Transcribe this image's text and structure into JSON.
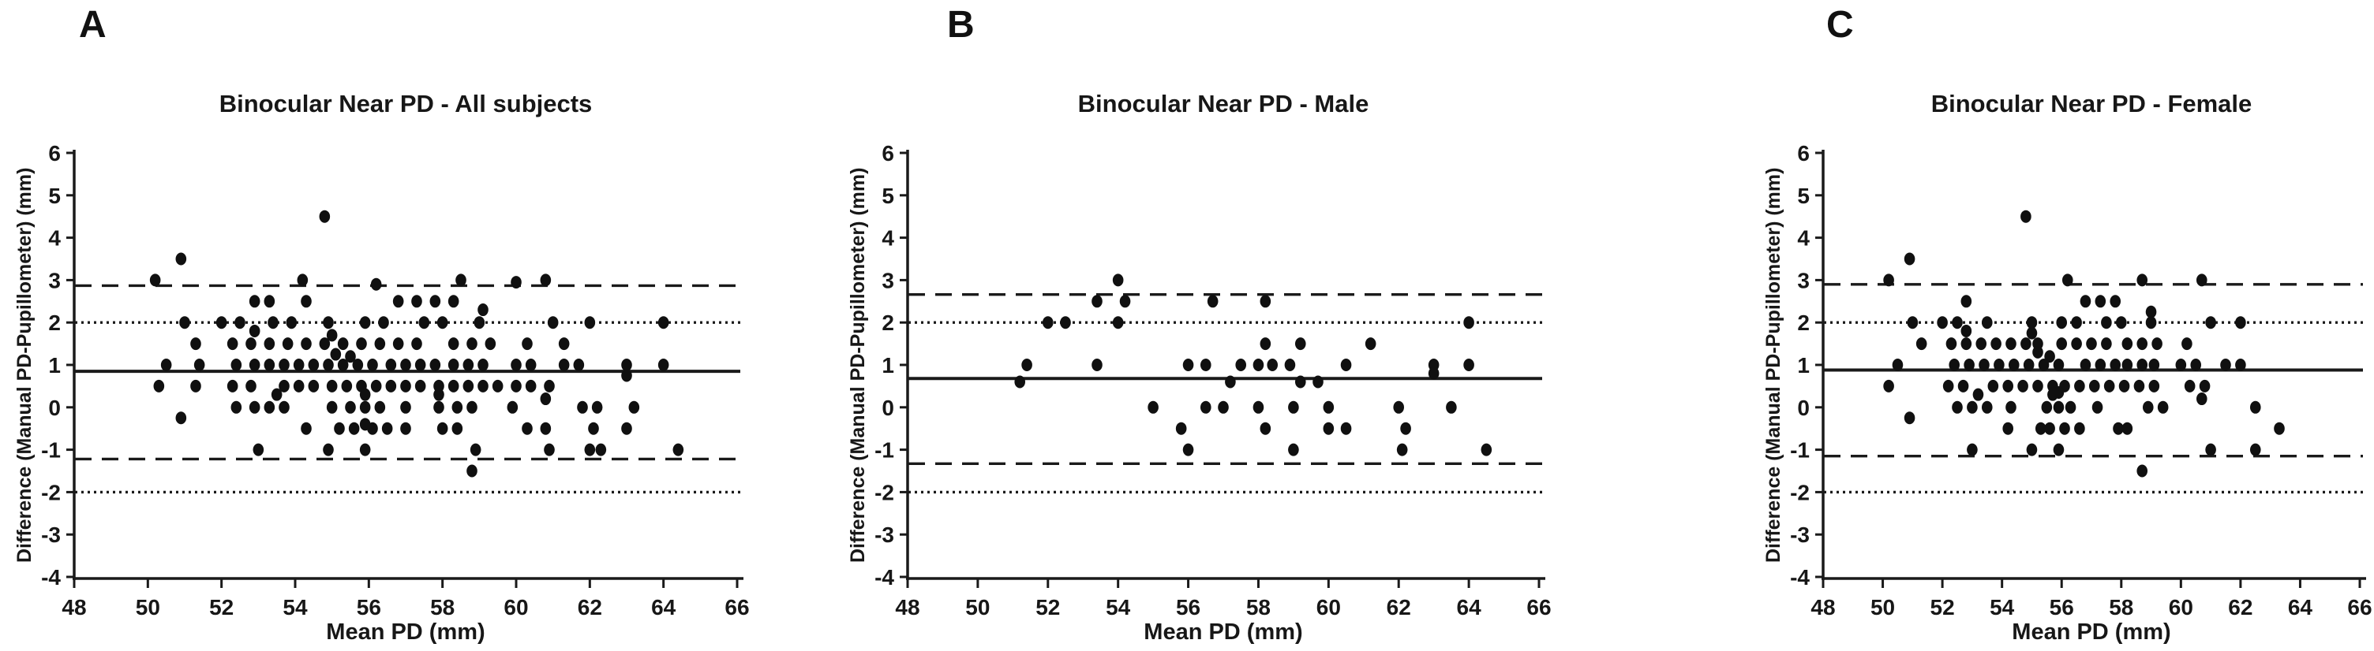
{
  "figure": {
    "kind": "bland-altman-scatter-figure",
    "background": "#ffffff",
    "colors": {
      "point": "#101010",
      "axis": "#1a1a1a",
      "reference_line": "#1a1a1a",
      "text": "#171717"
    }
  },
  "chart_data": [
    {
      "type": "scatter",
      "panel_label": "A",
      "title": "Binocular Near PD - All subjects",
      "xlabel": "Mean PD (mm)",
      "ylabel": "Difference (Manual PD-Pupillometer) (mm)",
      "xlim": [
        48,
        66
      ],
      "ylim": [
        -4,
        6
      ],
      "xticks": [
        48,
        50,
        52,
        54,
        56,
        58,
        60,
        62,
        64,
        66
      ],
      "yticks": [
        6,
        5,
        4,
        3,
        2,
        1,
        0,
        -1,
        -2,
        -3,
        -4
      ],
      "grid": false,
      "legend": null,
      "reference_lines": [
        {
          "y": 0.85,
          "style": "solid",
          "label": "mean-difference"
        },
        {
          "y": 2.87,
          "style": "dashed",
          "label": "upper-limit-of-agreement"
        },
        {
          "y": -1.22,
          "style": "dashed",
          "label": "lower-limit-of-agreement"
        },
        {
          "y": 2.0,
          "style": "dotted",
          "label": "upper-clinical-limit"
        },
        {
          "y": -2.0,
          "style": "dotted",
          "label": "lower-clinical-limit"
        }
      ],
      "points": [
        [
          54.8,
          4.5
        ],
        [
          50.9,
          3.5
        ],
        [
          50.2,
          3.0
        ],
        [
          54.2,
          3.0
        ],
        [
          56.2,
          2.9
        ],
        [
          58.5,
          3.0
        ],
        [
          60.0,
          2.95
        ],
        [
          60.8,
          3.0
        ],
        [
          52.9,
          2.5
        ],
        [
          53.3,
          2.5
        ],
        [
          54.3,
          2.5
        ],
        [
          56.8,
          2.5
        ],
        [
          57.3,
          2.5
        ],
        [
          57.8,
          2.5
        ],
        [
          58.3,
          2.5
        ],
        [
          59.1,
          2.3
        ],
        [
          51.0,
          2.0
        ],
        [
          52.0,
          2.0
        ],
        [
          52.5,
          2.0
        ],
        [
          53.4,
          2.0
        ],
        [
          53.9,
          2.0
        ],
        [
          54.9,
          2.0
        ],
        [
          55.9,
          2.0
        ],
        [
          56.4,
          2.0
        ],
        [
          57.5,
          2.0
        ],
        [
          58.0,
          2.0
        ],
        [
          59.0,
          2.0
        ],
        [
          61.0,
          2.0
        ],
        [
          62.0,
          2.0
        ],
        [
          64.0,
          2.0
        ],
        [
          52.9,
          1.8
        ],
        [
          55.0,
          1.7
        ],
        [
          51.3,
          1.5
        ],
        [
          52.3,
          1.5
        ],
        [
          52.8,
          1.5
        ],
        [
          53.3,
          1.5
        ],
        [
          53.8,
          1.5
        ],
        [
          54.3,
          1.5
        ],
        [
          54.8,
          1.5
        ],
        [
          55.3,
          1.5
        ],
        [
          55.8,
          1.5
        ],
        [
          56.3,
          1.5
        ],
        [
          56.8,
          1.5
        ],
        [
          57.3,
          1.5
        ],
        [
          58.3,
          1.5
        ],
        [
          58.8,
          1.5
        ],
        [
          59.3,
          1.5
        ],
        [
          60.3,
          1.5
        ],
        [
          61.3,
          1.5
        ],
        [
          55.1,
          1.25
        ],
        [
          55.5,
          1.2
        ],
        [
          50.5,
          1.0
        ],
        [
          51.4,
          1.0
        ],
        [
          52.4,
          1.0
        ],
        [
          52.9,
          1.0
        ],
        [
          53.3,
          1.0
        ],
        [
          53.7,
          1.0
        ],
        [
          54.1,
          1.0
        ],
        [
          54.5,
          1.0
        ],
        [
          54.9,
          1.0
        ],
        [
          55.3,
          1.0
        ],
        [
          55.7,
          1.0
        ],
        [
          56.1,
          1.0
        ],
        [
          56.6,
          1.0
        ],
        [
          57.0,
          1.0
        ],
        [
          57.4,
          1.0
        ],
        [
          57.8,
          1.0
        ],
        [
          58.3,
          1.0
        ],
        [
          58.7,
          1.0
        ],
        [
          59.1,
          1.0
        ],
        [
          60.0,
          1.0
        ],
        [
          60.4,
          1.0
        ],
        [
          61.3,
          1.0
        ],
        [
          61.7,
          1.0
        ],
        [
          63.0,
          1.0
        ],
        [
          64.0,
          1.0
        ],
        [
          63.0,
          0.75
        ],
        [
          50.3,
          0.5
        ],
        [
          51.3,
          0.5
        ],
        [
          52.3,
          0.5
        ],
        [
          52.8,
          0.5
        ],
        [
          53.7,
          0.5
        ],
        [
          54.1,
          0.5
        ],
        [
          54.5,
          0.5
        ],
        [
          55.0,
          0.5
        ],
        [
          55.4,
          0.5
        ],
        [
          55.8,
          0.5
        ],
        [
          56.2,
          0.5
        ],
        [
          56.6,
          0.5
        ],
        [
          57.0,
          0.5
        ],
        [
          57.4,
          0.5
        ],
        [
          57.9,
          0.5
        ],
        [
          58.3,
          0.5
        ],
        [
          58.7,
          0.5
        ],
        [
          59.1,
          0.5
        ],
        [
          59.5,
          0.5
        ],
        [
          60.0,
          0.5
        ],
        [
          60.4,
          0.5
        ],
        [
          60.9,
          0.5
        ],
        [
          53.5,
          0.3
        ],
        [
          55.9,
          0.3
        ],
        [
          57.9,
          0.3
        ],
        [
          60.8,
          0.2
        ],
        [
          52.4,
          0.0
        ],
        [
          52.9,
          0.0
        ],
        [
          53.3,
          0.0
        ],
        [
          53.7,
          0.0
        ],
        [
          55.0,
          0.0
        ],
        [
          55.5,
          0.0
        ],
        [
          55.9,
          0.0
        ],
        [
          56.3,
          0.0
        ],
        [
          57.0,
          0.0
        ],
        [
          57.9,
          0.0
        ],
        [
          58.4,
          0.0
        ],
        [
          58.8,
          0.0
        ],
        [
          59.9,
          0.0
        ],
        [
          61.8,
          0.0
        ],
        [
          62.2,
          0.0
        ],
        [
          63.2,
          0.0
        ],
        [
          50.9,
          -0.25
        ],
        [
          55.9,
          -0.4
        ],
        [
          54.3,
          -0.5
        ],
        [
          55.2,
          -0.5
        ],
        [
          55.6,
          -0.5
        ],
        [
          56.1,
          -0.5
        ],
        [
          56.5,
          -0.5
        ],
        [
          57.0,
          -0.5
        ],
        [
          58.0,
          -0.5
        ],
        [
          58.4,
          -0.5
        ],
        [
          60.3,
          -0.5
        ],
        [
          60.8,
          -0.5
        ],
        [
          62.1,
          -0.5
        ],
        [
          63.0,
          -0.5
        ],
        [
          53.0,
          -1.0
        ],
        [
          54.9,
          -1.0
        ],
        [
          55.9,
          -1.0
        ],
        [
          58.9,
          -1.0
        ],
        [
          60.9,
          -1.0
        ],
        [
          62.0,
          -1.0
        ],
        [
          62.3,
          -1.0
        ],
        [
          64.4,
          -1.0
        ],
        [
          58.8,
          -1.5
        ]
      ]
    },
    {
      "type": "scatter",
      "panel_label": "B",
      "title": "Binocular Near PD - Male",
      "xlabel": "Mean PD (mm)",
      "ylabel": "Difference (Manual PD-Pupillometer) (mm)",
      "xlim": [
        48,
        66
      ],
      "ylim": [
        -4,
        6
      ],
      "xticks": [
        48,
        50,
        52,
        54,
        56,
        58,
        60,
        62,
        64,
        66
      ],
      "yticks": [
        6,
        5,
        4,
        3,
        2,
        1,
        0,
        -1,
        -2,
        -3,
        -4
      ],
      "grid": false,
      "legend": null,
      "reference_lines": [
        {
          "y": 0.68,
          "style": "solid",
          "label": "mean-difference"
        },
        {
          "y": 2.66,
          "style": "dashed",
          "label": "upper-limit-of-agreement"
        },
        {
          "y": -1.33,
          "style": "dashed",
          "label": "lower-limit-of-agreement"
        },
        {
          "y": 2.0,
          "style": "dotted",
          "label": "upper-clinical-limit"
        },
        {
          "y": -2.0,
          "style": "dotted",
          "label": "lower-clinical-limit"
        }
      ],
      "points": [
        [
          54.0,
          3.0
        ],
        [
          53.4,
          2.5
        ],
        [
          54.2,
          2.5
        ],
        [
          56.7,
          2.5
        ],
        [
          58.2,
          2.5
        ],
        [
          52.0,
          2.0
        ],
        [
          52.5,
          2.0
        ],
        [
          54.0,
          2.0
        ],
        [
          64.0,
          2.0
        ],
        [
          58.2,
          1.5
        ],
        [
          59.2,
          1.5
        ],
        [
          61.2,
          1.5
        ],
        [
          51.4,
          1.0
        ],
        [
          53.4,
          1.0
        ],
        [
          56.0,
          1.0
        ],
        [
          56.5,
          1.0
        ],
        [
          57.5,
          1.0
        ],
        [
          58.0,
          1.0
        ],
        [
          58.4,
          1.0
        ],
        [
          58.9,
          1.0
        ],
        [
          60.5,
          1.0
        ],
        [
          63.0,
          1.0
        ],
        [
          64.0,
          1.0
        ],
        [
          63.0,
          0.8
        ],
        [
          51.2,
          0.6
        ],
        [
          57.2,
          0.6
        ],
        [
          59.2,
          0.6
        ],
        [
          59.7,
          0.6
        ],
        [
          55.0,
          0.0
        ],
        [
          56.5,
          0.0
        ],
        [
          57.0,
          0.0
        ],
        [
          58.0,
          0.0
        ],
        [
          59.0,
          0.0
        ],
        [
          60.0,
          0.0
        ],
        [
          62.0,
          0.0
        ],
        [
          63.5,
          0.0
        ],
        [
          55.8,
          -0.5
        ],
        [
          58.2,
          -0.5
        ],
        [
          60.0,
          -0.5
        ],
        [
          60.5,
          -0.5
        ],
        [
          62.2,
          -0.5
        ],
        [
          56.0,
          -1.0
        ],
        [
          59.0,
          -1.0
        ],
        [
          62.1,
          -1.0
        ],
        [
          64.5,
          -1.0
        ]
      ]
    },
    {
      "type": "scatter",
      "panel_label": "C",
      "title": "Binocular Near PD - Female",
      "xlabel": "Mean PD (mm)",
      "ylabel": "Difference (Manual PD-Pupillometer) (mm)",
      "xlim": [
        48,
        66
      ],
      "ylim": [
        -4,
        6
      ],
      "xticks": [
        48,
        50,
        52,
        54,
        56,
        58,
        60,
        62,
        64,
        66
      ],
      "yticks": [
        6,
        5,
        4,
        3,
        2,
        1,
        0,
        -1,
        -2,
        -3,
        -4
      ],
      "grid": false,
      "legend": null,
      "reference_lines": [
        {
          "y": 0.88,
          "style": "solid",
          "label": "mean-difference"
        },
        {
          "y": 2.9,
          "style": "dashed",
          "label": "upper-limit-of-agreement"
        },
        {
          "y": -1.15,
          "style": "dashed",
          "label": "lower-limit-of-agreement"
        },
        {
          "y": 2.0,
          "style": "dotted",
          "label": "upper-clinical-limit"
        },
        {
          "y": -2.0,
          "style": "dotted",
          "label": "lower-clinical-limit"
        }
      ],
      "points": [
        [
          54.8,
          4.5
        ],
        [
          50.9,
          3.5
        ],
        [
          50.2,
          3.0
        ],
        [
          56.2,
          3.0
        ],
        [
          58.7,
          3.0
        ],
        [
          60.7,
          3.0
        ],
        [
          52.8,
          2.5
        ],
        [
          56.8,
          2.5
        ],
        [
          57.3,
          2.5
        ],
        [
          57.8,
          2.5
        ],
        [
          59.0,
          2.25
        ],
        [
          51.0,
          2.0
        ],
        [
          52.0,
          2.0
        ],
        [
          52.5,
          2.0
        ],
        [
          53.5,
          2.0
        ],
        [
          55.0,
          2.0
        ],
        [
          56.0,
          2.0
        ],
        [
          56.5,
          2.0
        ],
        [
          57.5,
          2.0
        ],
        [
          58.0,
          2.0
        ],
        [
          59.0,
          2.0
        ],
        [
          61.0,
          2.0
        ],
        [
          62.0,
          2.0
        ],
        [
          52.8,
          1.8
        ],
        [
          55.0,
          1.75
        ],
        [
          51.3,
          1.5
        ],
        [
          52.3,
          1.5
        ],
        [
          52.8,
          1.5
        ],
        [
          53.3,
          1.5
        ],
        [
          53.8,
          1.5
        ],
        [
          54.3,
          1.5
        ],
        [
          54.8,
          1.5
        ],
        [
          55.2,
          1.5
        ],
        [
          56.0,
          1.5
        ],
        [
          56.5,
          1.5
        ],
        [
          57.0,
          1.5
        ],
        [
          57.5,
          1.5
        ],
        [
          58.2,
          1.5
        ],
        [
          58.7,
          1.5
        ],
        [
          59.2,
          1.5
        ],
        [
          60.2,
          1.5
        ],
        [
          55.2,
          1.3
        ],
        [
          55.6,
          1.2
        ],
        [
          50.5,
          1.0
        ],
        [
          52.4,
          1.0
        ],
        [
          52.9,
          1.0
        ],
        [
          53.4,
          1.0
        ],
        [
          53.9,
          1.0
        ],
        [
          54.4,
          1.0
        ],
        [
          54.9,
          1.0
        ],
        [
          55.4,
          1.0
        ],
        [
          55.9,
          1.0
        ],
        [
          56.8,
          1.0
        ],
        [
          57.3,
          1.0
        ],
        [
          57.8,
          1.0
        ],
        [
          58.2,
          1.0
        ],
        [
          58.7,
          1.0
        ],
        [
          59.1,
          1.0
        ],
        [
          60.0,
          1.0
        ],
        [
          60.5,
          1.0
        ],
        [
          61.5,
          1.0
        ],
        [
          62.0,
          1.0
        ],
        [
          50.2,
          0.5
        ],
        [
          52.2,
          0.5
        ],
        [
          52.7,
          0.5
        ],
        [
          53.7,
          0.5
        ],
        [
          54.2,
          0.5
        ],
        [
          54.7,
          0.5
        ],
        [
          55.2,
          0.5
        ],
        [
          55.7,
          0.5
        ],
        [
          56.1,
          0.5
        ],
        [
          56.6,
          0.5
        ],
        [
          57.1,
          0.5
        ],
        [
          57.6,
          0.5
        ],
        [
          58.1,
          0.5
        ],
        [
          58.6,
          0.5
        ],
        [
          59.1,
          0.5
        ],
        [
          60.3,
          0.5
        ],
        [
          60.8,
          0.5
        ],
        [
          53.2,
          0.3
        ],
        [
          55.7,
          0.3
        ],
        [
          55.9,
          0.35
        ],
        [
          60.7,
          0.2
        ],
        [
          52.5,
          0.0
        ],
        [
          53.0,
          0.0
        ],
        [
          53.5,
          0.0
        ],
        [
          54.3,
          0.0
        ],
        [
          55.5,
          0.0
        ],
        [
          55.9,
          0.0
        ],
        [
          56.3,
          0.0
        ],
        [
          57.2,
          0.0
        ],
        [
          58.9,
          0.0
        ],
        [
          59.4,
          0.0
        ],
        [
          62.5,
          0.0
        ],
        [
          50.9,
          -0.25
        ],
        [
          54.2,
          -0.5
        ],
        [
          55.3,
          -0.5
        ],
        [
          55.6,
          -0.5
        ],
        [
          56.1,
          -0.5
        ],
        [
          56.6,
          -0.5
        ],
        [
          57.9,
          -0.5
        ],
        [
          58.2,
          -0.5
        ],
        [
          63.3,
          -0.5
        ],
        [
          53.0,
          -1.0
        ],
        [
          55.0,
          -1.0
        ],
        [
          55.9,
          -1.0
        ],
        [
          61.0,
          -1.0
        ],
        [
          62.5,
          -1.0
        ],
        [
          58.7,
          -1.5
        ]
      ]
    }
  ]
}
